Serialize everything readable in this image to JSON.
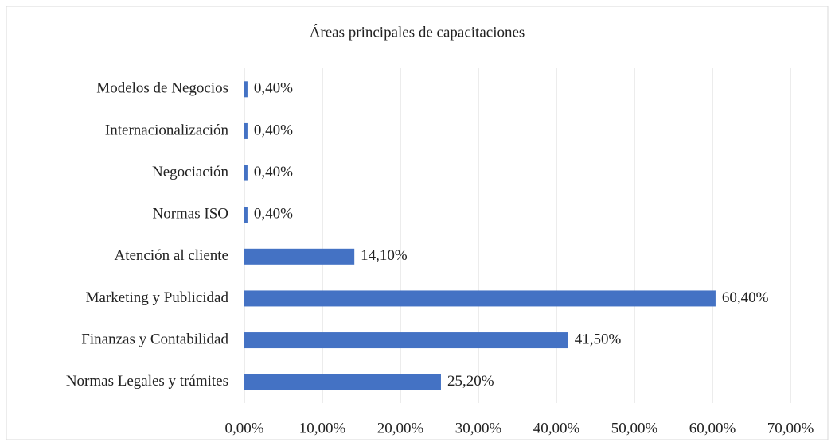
{
  "chart_data": {
    "type": "barh",
    "title": "Áreas principales de capacitaciones",
    "categories": [
      "Modelos de Negocios",
      "Internacionalización",
      "Negociación",
      "Normas ISO",
      "Atención al cliente",
      "Marketing y Publicidad",
      "Finanzas y Contabilidad",
      "Normas Legales y trámites"
    ],
    "values": [
      0.4,
      0.4,
      0.4,
      0.4,
      14.1,
      60.4,
      41.5,
      25.2
    ],
    "value_labels": [
      "0,40%",
      "0,40%",
      "0,40%",
      "0,40%",
      "14,10%",
      "60,40%",
      "41,50%",
      "25,20%"
    ],
    "color": "#4472c4",
    "xlim": [
      0,
      70
    ],
    "xticks": [
      {
        "value": 0,
        "label": "0,00%"
      },
      {
        "value": 10,
        "label": "10,00%"
      },
      {
        "value": 20,
        "label": "20,00%"
      },
      {
        "value": 30,
        "label": "30,00%"
      },
      {
        "value": 40,
        "label": "40,00%"
      },
      {
        "value": 50,
        "label": "50,00%"
      },
      {
        "value": 60,
        "label": "60,00%"
      },
      {
        "value": 70,
        "label": "70,00%"
      }
    ],
    "grid": true
  }
}
